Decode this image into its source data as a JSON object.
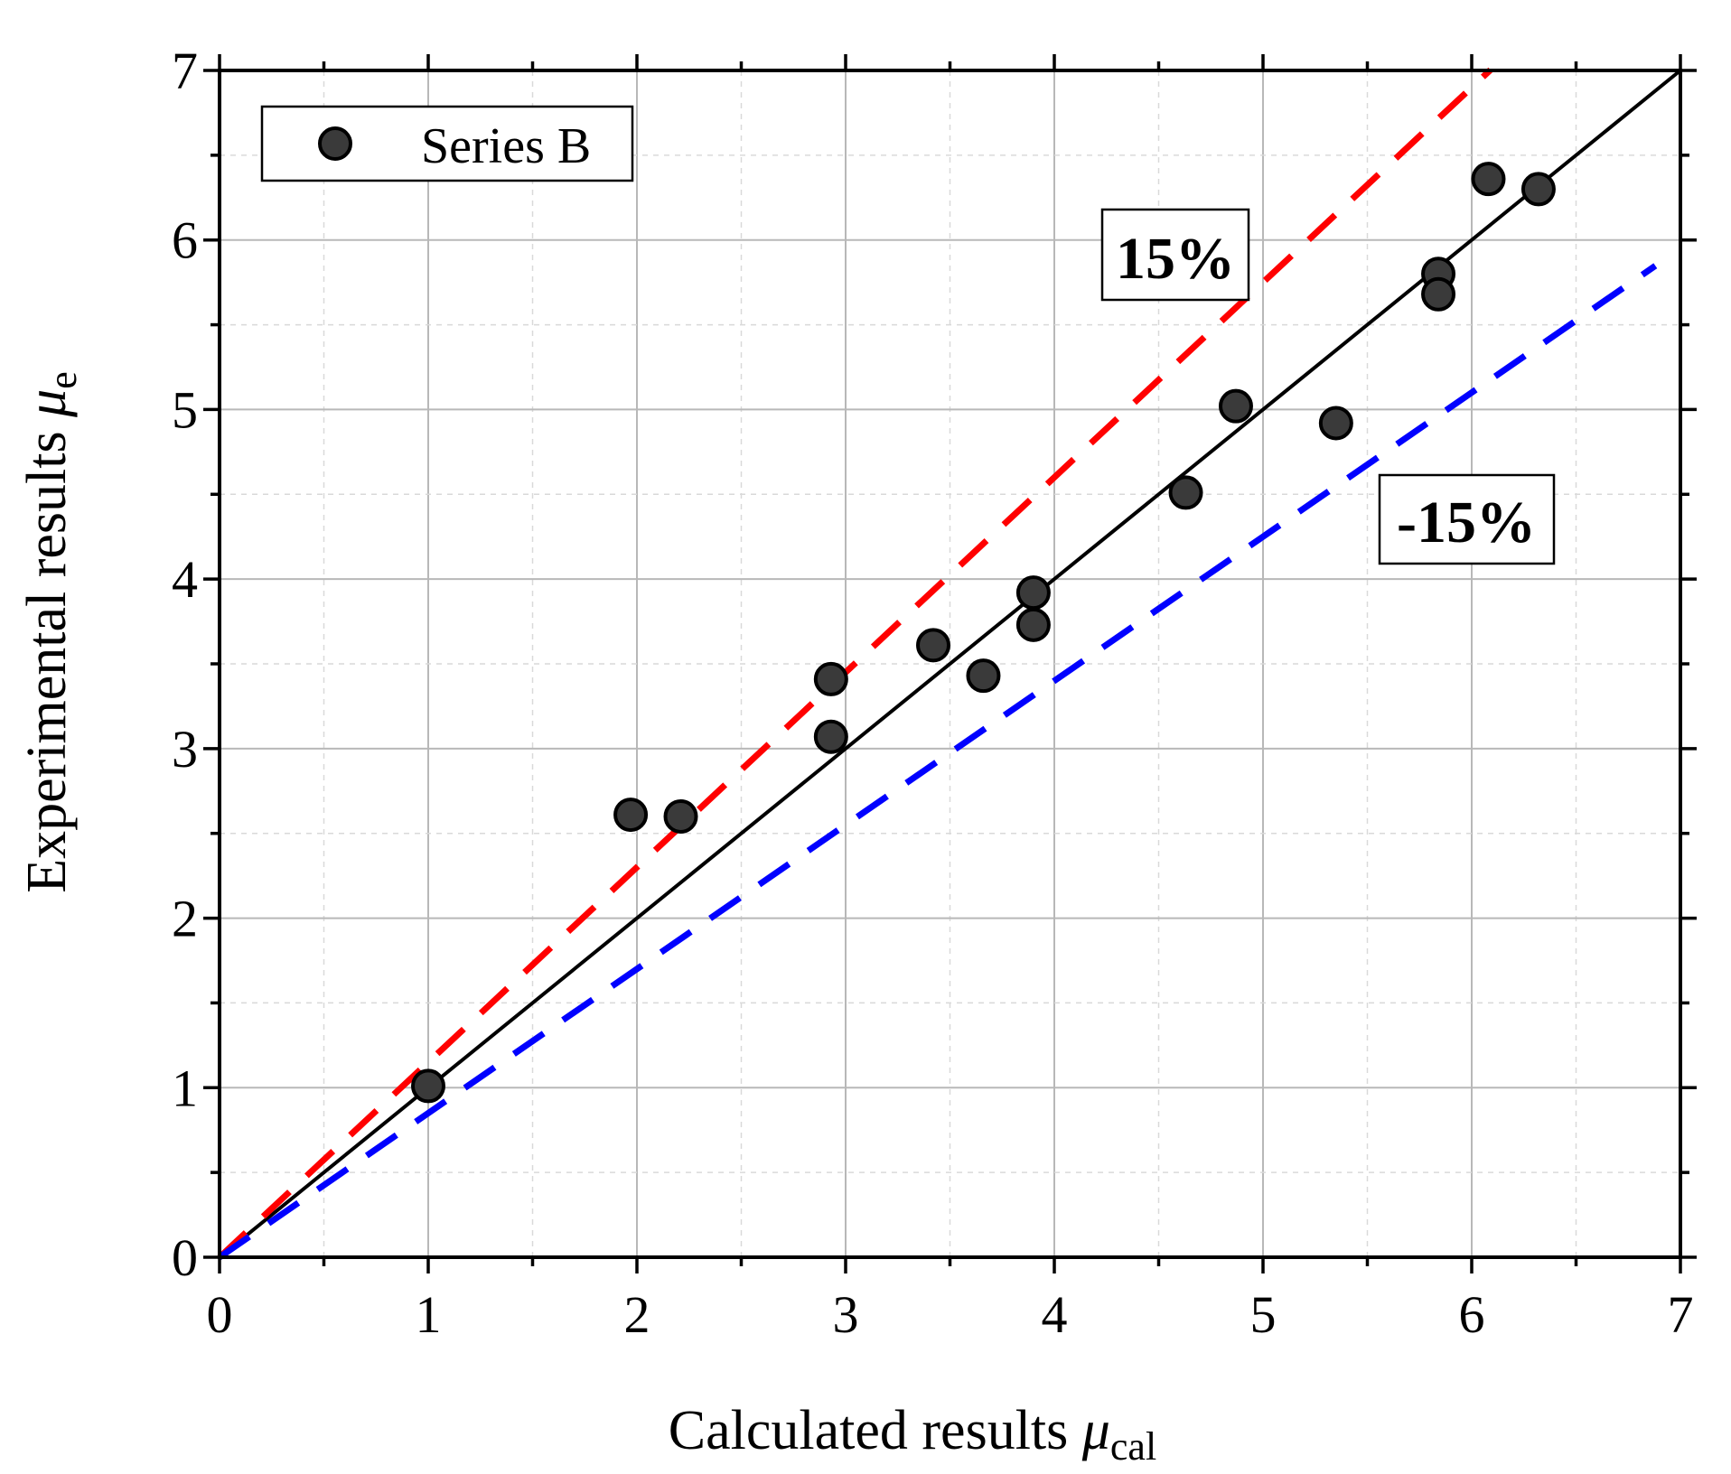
{
  "chart_data": {
    "type": "scatter",
    "title": "",
    "xlabel": {
      "text": "Calculated results ",
      "symbol": "μ",
      "subscript": "cal"
    },
    "ylabel": {
      "text": "Experimental results ",
      "symbol": "μ",
      "subscript": "e"
    },
    "xlim": [
      0,
      7
    ],
    "ylim": [
      0,
      7
    ],
    "xticks": [
      "0",
      "1",
      "2",
      "3",
      "4",
      "5",
      "6",
      "7"
    ],
    "yticks": [
      "0",
      "1",
      "2",
      "3",
      "4",
      "5",
      "6",
      "7"
    ],
    "minor_step": 0.5,
    "grid": true,
    "legend": {
      "position": "top-left",
      "entries": [
        "Series B"
      ]
    },
    "series": [
      {
        "name": "Series B",
        "color": "#3a3a3a",
        "points": [
          {
            "x": 1.0,
            "y": 1.01
          },
          {
            "x": 1.97,
            "y": 2.61
          },
          {
            "x": 2.21,
            "y": 2.6
          },
          {
            "x": 2.93,
            "y": 3.41
          },
          {
            "x": 2.93,
            "y": 3.07
          },
          {
            "x": 3.42,
            "y": 3.61
          },
          {
            "x": 3.66,
            "y": 3.43
          },
          {
            "x": 3.9,
            "y": 3.92
          },
          {
            "x": 3.9,
            "y": 3.73
          },
          {
            "x": 4.63,
            "y": 4.51
          },
          {
            "x": 4.87,
            "y": 5.02
          },
          {
            "x": 5.35,
            "y": 4.92
          },
          {
            "x": 5.84,
            "y": 5.8
          },
          {
            "x": 5.84,
            "y": 5.68
          },
          {
            "x": 6.08,
            "y": 6.36
          },
          {
            "x": 6.32,
            "y": 6.3
          }
        ]
      }
    ],
    "reference_lines": [
      {
        "name": "equality",
        "slope": 1.0,
        "x_range": [
          0,
          7
        ],
        "color": "#000000",
        "style": "solid"
      },
      {
        "name": "upper-15",
        "slope": 1.15,
        "x_range": [
          0,
          6.09
        ],
        "color": "#ff0000",
        "style": "dashed"
      },
      {
        "name": "lower-15",
        "slope": 0.85,
        "x_range": [
          0,
          6.88
        ],
        "color": "#0000ff",
        "style": "dashed"
      }
    ],
    "annotations": [
      "15%",
      "-15%"
    ]
  }
}
